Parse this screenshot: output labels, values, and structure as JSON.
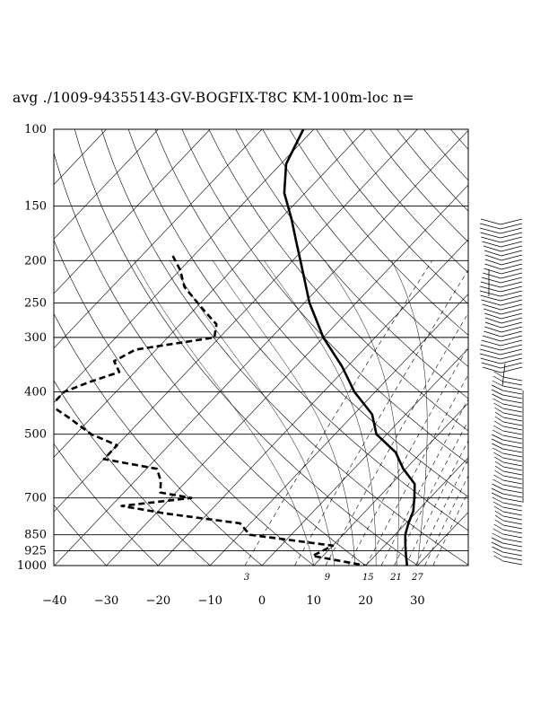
{
  "title": "avg ./1009-94355143-GV-BOGFIX-T8C KM-100m-loc n=",
  "chart_data": {
    "type": "skew-t log-p sounding",
    "title": "avg ./1009-94355143-GV-BOGFIX-T8C KM-100m-loc n=",
    "pressure_levels": [
      100,
      150,
      200,
      250,
      300,
      400,
      500,
      700,
      850,
      925,
      1000
    ],
    "pressure_labels": [
      "100",
      "150",
      "200",
      "250",
      "300",
      "400",
      "500",
      "700",
      "850",
      "925",
      "1000"
    ],
    "temperature_ticks": [
      -40,
      -30,
      -20,
      -10,
      0,
      10,
      20,
      30
    ],
    "temperature_tick_labels": [
      "−40",
      "−30",
      "−20",
      "−10",
      "0",
      "10",
      "20",
      "30"
    ],
    "mixing_ratio_labels": [
      "3",
      "9",
      "15",
      "21",
      "27"
    ],
    "mixing_ratio_values": [
      3,
      9,
      15,
      21,
      27
    ],
    "xlim": [
      -40,
      40
    ],
    "ylim": [
      1000,
      100
    ],
    "skew_degrees_per_decade": 80,
    "series": [
      {
        "style": "solid",
        "p": [
          100,
          120,
          140,
          160,
          180,
          200,
          250,
          300,
          350,
          400,
          450,
          500,
          550,
          600,
          650,
          700,
          750,
          800,
          850,
          900,
          950,
          1000
        ],
        "t": [
          -72,
          -69,
          -64,
          -58,
          -53,
          -48.5,
          -39,
          -30,
          -21,
          -14,
          -6.5,
          -2,
          5,
          9.5,
          14.5,
          17,
          19.2,
          20.5,
          22,
          24,
          26,
          28
        ]
      },
      {
        "style": "dashed",
        "p": [
          195,
          210,
          230,
          260,
          280,
          300,
          320,
          340,
          360,
          380,
          400,
          430,
          460,
          500,
          530,
          570,
          600,
          640,
          680,
          700,
          730,
          760,
          800,
          850,
          900,
          950,
          1000
        ],
        "t": [
          -74,
          -70,
          -66,
          -58,
          -53,
          -51,
          -64,
          -66,
          -63,
          -67,
          -70,
          -70,
          -64,
          -57,
          -50,
          -50,
          -38,
          -35,
          -33,
          -26,
          -38,
          -28,
          -12,
          -8,
          10,
          8,
          20
        ]
      }
    ],
    "wind_barbs": "profile of wind barbs along the right margin from 100 to 1000 hPa"
  }
}
